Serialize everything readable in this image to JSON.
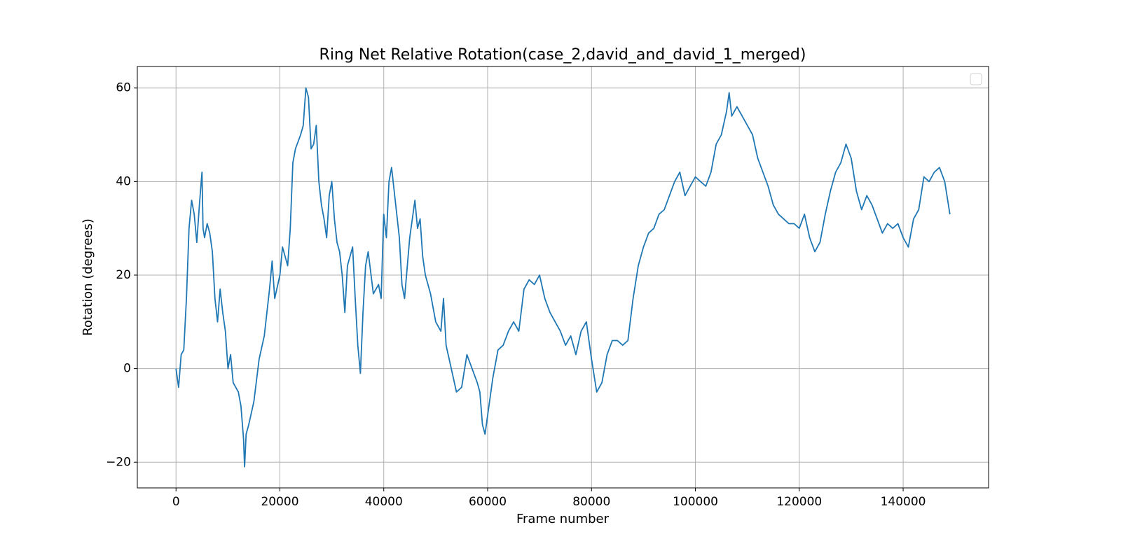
{
  "chart_data": {
    "type": "line",
    "title": "Ring Net Relative Rotation(case_2,david_and_david_1_merged)",
    "x_label": "Frame number",
    "y_label": "Rotation (degrees)",
    "color": "#1f77b4",
    "grid": true,
    "legend": "upper right",
    "xlim": [
      -7450,
      156450
    ],
    "ylim": [
      -25.5,
      64.6
    ],
    "xticks": [
      0,
      20000,
      40000,
      60000,
      80000,
      100000,
      120000,
      140000
    ],
    "yticks": [
      {
        "value": -20,
        "label": "−20"
      },
      0,
      20,
      40,
      60
    ],
    "x": [
      0,
      500,
      1000,
      1500,
      2000,
      2500,
      3000,
      3500,
      4000,
      4500,
      5000,
      5200,
      5500,
      6000,
      6500,
      7000,
      7500,
      8000,
      8500,
      9000,
      9500,
      10000,
      10500,
      11000,
      12000,
      12500,
      13000,
      13200,
      13500,
      14000,
      15000,
      16000,
      17000,
      18000,
      18500,
      19000,
      20000,
      20500,
      21000,
      21500,
      22000,
      22500,
      23000,
      24000,
      24500,
      25000,
      25500,
      26000,
      26500,
      27000,
      27500,
      28000,
      28500,
      29000,
      29500,
      30000,
      30500,
      31000,
      31500,
      32000,
      32500,
      33000,
      34000,
      34500,
      35000,
      35500,
      36000,
      36500,
      37000,
      38000,
      39000,
      39500,
      40000,
      40500,
      41000,
      41500,
      42000,
      43000,
      43500,
      44000,
      45000,
      46000,
      46500,
      47000,
      47500,
      48000,
      49000,
      50000,
      51000,
      51500,
      52000,
      53000,
      54000,
      55000,
      56000,
      57000,
      58000,
      58500,
      59000,
      59500,
      60000,
      61000,
      62000,
      63000,
      64000,
      65000,
      66000,
      67000,
      68000,
      69000,
      70000,
      71000,
      72000,
      73000,
      74000,
      75000,
      76000,
      77000,
      78000,
      79000,
      80000,
      81000,
      82000,
      83000,
      84000,
      85000,
      86000,
      87000,
      88000,
      89000,
      90000,
      91000,
      92000,
      93000,
      94000,
      95000,
      96000,
      97000,
      98000,
      99000,
      100000,
      101000,
      102000,
      103000,
      104000,
      105000,
      106000,
      106500,
      107000,
      108000,
      109000,
      110000,
      111000,
      112000,
      113000,
      114000,
      115000,
      116000,
      117000,
      118000,
      119000,
      120000,
      121000,
      122000,
      123000,
      124000,
      125000,
      126000,
      127000,
      128000,
      129000,
      130000,
      131000,
      132000,
      133000,
      134000,
      135000,
      136000,
      137000,
      138000,
      139000,
      140000,
      141000,
      142000,
      143000,
      144000,
      145000,
      146000,
      147000,
      148000,
      149000
    ],
    "values": [
      0,
      -4,
      3,
      4,
      15,
      30,
      36,
      33,
      27,
      35,
      42,
      30,
      28,
      31,
      29,
      25,
      15,
      10,
      17,
      12,
      8,
      0,
      3,
      -3,
      -5,
      -8,
      -15,
      -21,
      -14,
      -12,
      -7,
      2,
      7,
      17,
      23,
      15,
      20,
      26,
      24,
      22,
      30,
      44,
      47,
      50,
      52,
      60,
      58,
      47,
      48,
      52,
      40,
      35,
      32,
      28,
      37,
      40,
      32,
      27,
      25,
      20,
      12,
      22,
      26,
      15,
      5,
      -1,
      12,
      22,
      25,
      16,
      18,
      15,
      33,
      28,
      40,
      43,
      38,
      28,
      18,
      15,
      28,
      36,
      30,
      32,
      24,
      20,
      16,
      10,
      8,
      15,
      5,
      0,
      -5,
      -4,
      3,
      0,
      -3,
      -5,
      -12,
      -14,
      -10,
      -2,
      4,
      5,
      8,
      10,
      8,
      17,
      19,
      18,
      20,
      15,
      12,
      10,
      8,
      5,
      7,
      3,
      8,
      10,
      2,
      -5,
      -3,
      3,
      6,
      6,
      5,
      6,
      15,
      22,
      26,
      29,
      30,
      33,
      34,
      37,
      40,
      42,
      37,
      39,
      41,
      40,
      39,
      42,
      48,
      50,
      55,
      59,
      54,
      56,
      54,
      52,
      50,
      45,
      42,
      39,
      35,
      33,
      32,
      31,
      31,
      30,
      33,
      28,
      25,
      27,
      33,
      38,
      42,
      44,
      48,
      45,
      38,
      34,
      37,
      35,
      32,
      29,
      31,
      30,
      31,
      28,
      26,
      32,
      34,
      41,
      40,
      42,
      43,
      40,
      33
    ]
  }
}
